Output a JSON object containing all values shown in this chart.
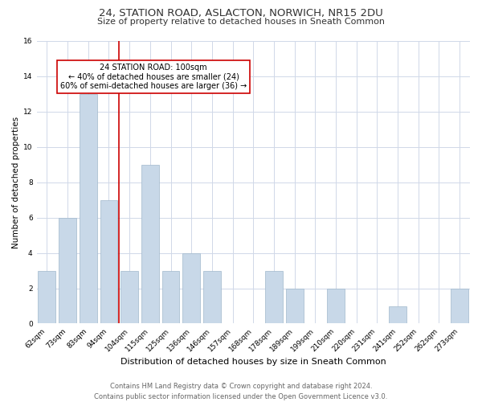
{
  "title": "24, STATION ROAD, ASLACTON, NORWICH, NR15 2DU",
  "subtitle": "Size of property relative to detached houses in Sneath Common",
  "xlabel": "Distribution of detached houses by size in Sneath Common",
  "ylabel": "Number of detached properties",
  "footer_line1": "Contains HM Land Registry data © Crown copyright and database right 2024.",
  "footer_line2": "Contains public sector information licensed under the Open Government Licence v3.0.",
  "categories": [
    "62sqm",
    "73sqm",
    "83sqm",
    "94sqm",
    "104sqm",
    "115sqm",
    "125sqm",
    "136sqm",
    "146sqm",
    "157sqm",
    "168sqm",
    "178sqm",
    "189sqm",
    "199sqm",
    "210sqm",
    "220sqm",
    "231sqm",
    "241sqm",
    "252sqm",
    "262sqm",
    "273sqm"
  ],
  "values": [
    3,
    6,
    13,
    7,
    3,
    9,
    3,
    4,
    3,
    0,
    0,
    3,
    2,
    0,
    2,
    0,
    0,
    1,
    0,
    0,
    2
  ],
  "bar_color": "#c8d8e8",
  "bar_edge_color": "#a0b8cc",
  "highlight_bar_index": 3,
  "highlight_color": "#cc0000",
  "ylim": [
    0,
    16
  ],
  "yticks": [
    0,
    2,
    4,
    6,
    8,
    10,
    12,
    14,
    16
  ],
  "annotation_title": "24 STATION ROAD: 100sqm",
  "annotation_line1": "← 40% of detached houses are smaller (24)",
  "annotation_line2": "60% of semi-detached houses are larger (36) →",
  "annotation_box_color": "#ffffff",
  "annotation_border_color": "#cc0000",
  "background_color": "#ffffff",
  "grid_color": "#d0d8e8",
  "title_fontsize": 9.5,
  "subtitle_fontsize": 8,
  "xlabel_fontsize": 8,
  "ylabel_fontsize": 7.5,
  "tick_fontsize": 6.5,
  "footer_fontsize": 6,
  "annot_fontsize": 7
}
